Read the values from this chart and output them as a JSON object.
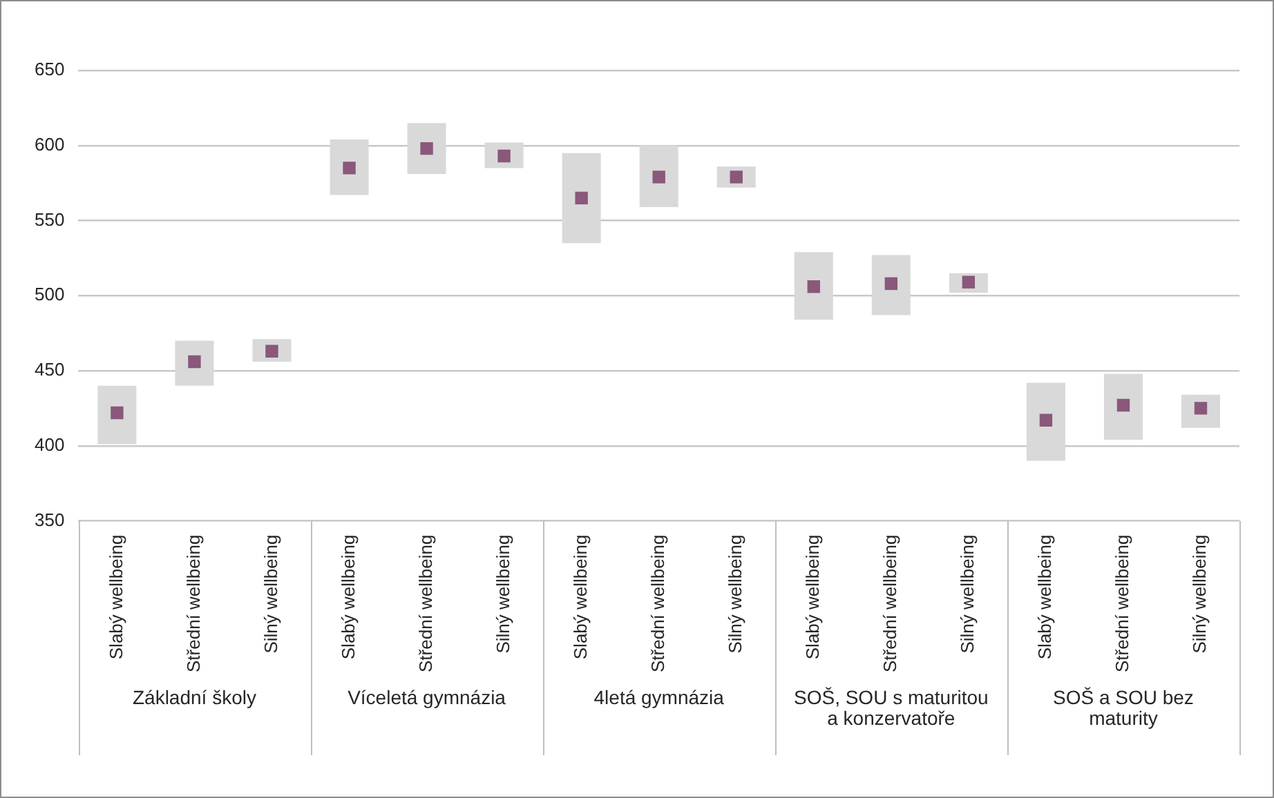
{
  "chart_data": {
    "type": "bar",
    "categories": [
      "Slabý wellbeing",
      "Střední wellbeing",
      "Silný wellbeing",
      "Slabý wellbeing",
      "Střední wellbeing",
      "Silný wellbeing",
      "Slabý wellbeing",
      "Střední wellbeing",
      "Silný wellbeing",
      "Slabý wellbeing",
      "Střední wellbeing",
      "Silný wellbeing",
      "Slabý wellbeing",
      "Střední wellbeing",
      "Silný wellbeing"
    ],
    "series": [
      {
        "color": "#d9d9d9",
        "base": [
          401,
          440,
          456,
          567,
          581,
          585,
          535,
          559,
          572,
          484,
          487,
          502,
          390,
          404,
          412
        ],
        "values": [
          39,
          30,
          15,
          37,
          34,
          17,
          60,
          41,
          14,
          45,
          40,
          13,
          52,
          44,
          22
        ]
      },
      {
        "type": "scatter",
        "marker": "square",
        "color": "#89587a",
        "values": [
          422,
          456,
          463,
          585,
          598,
          593,
          565,
          579,
          579,
          506,
          508,
          509,
          417,
          427,
          425
        ]
      }
    ],
    "ylim": [
      350,
      650
    ],
    "yticks": [
      350,
      400,
      450,
      500,
      550,
      600,
      650
    ],
    "grid": "y",
    "legend": false,
    "annotations": [
      "Základní školy",
      "Víceletá gymnázia",
      "4letá gymnázia",
      "SOŠ, SOU s maturitou a konzervatoře",
      "SOŠ a SOU bez maturity"
    ]
  }
}
